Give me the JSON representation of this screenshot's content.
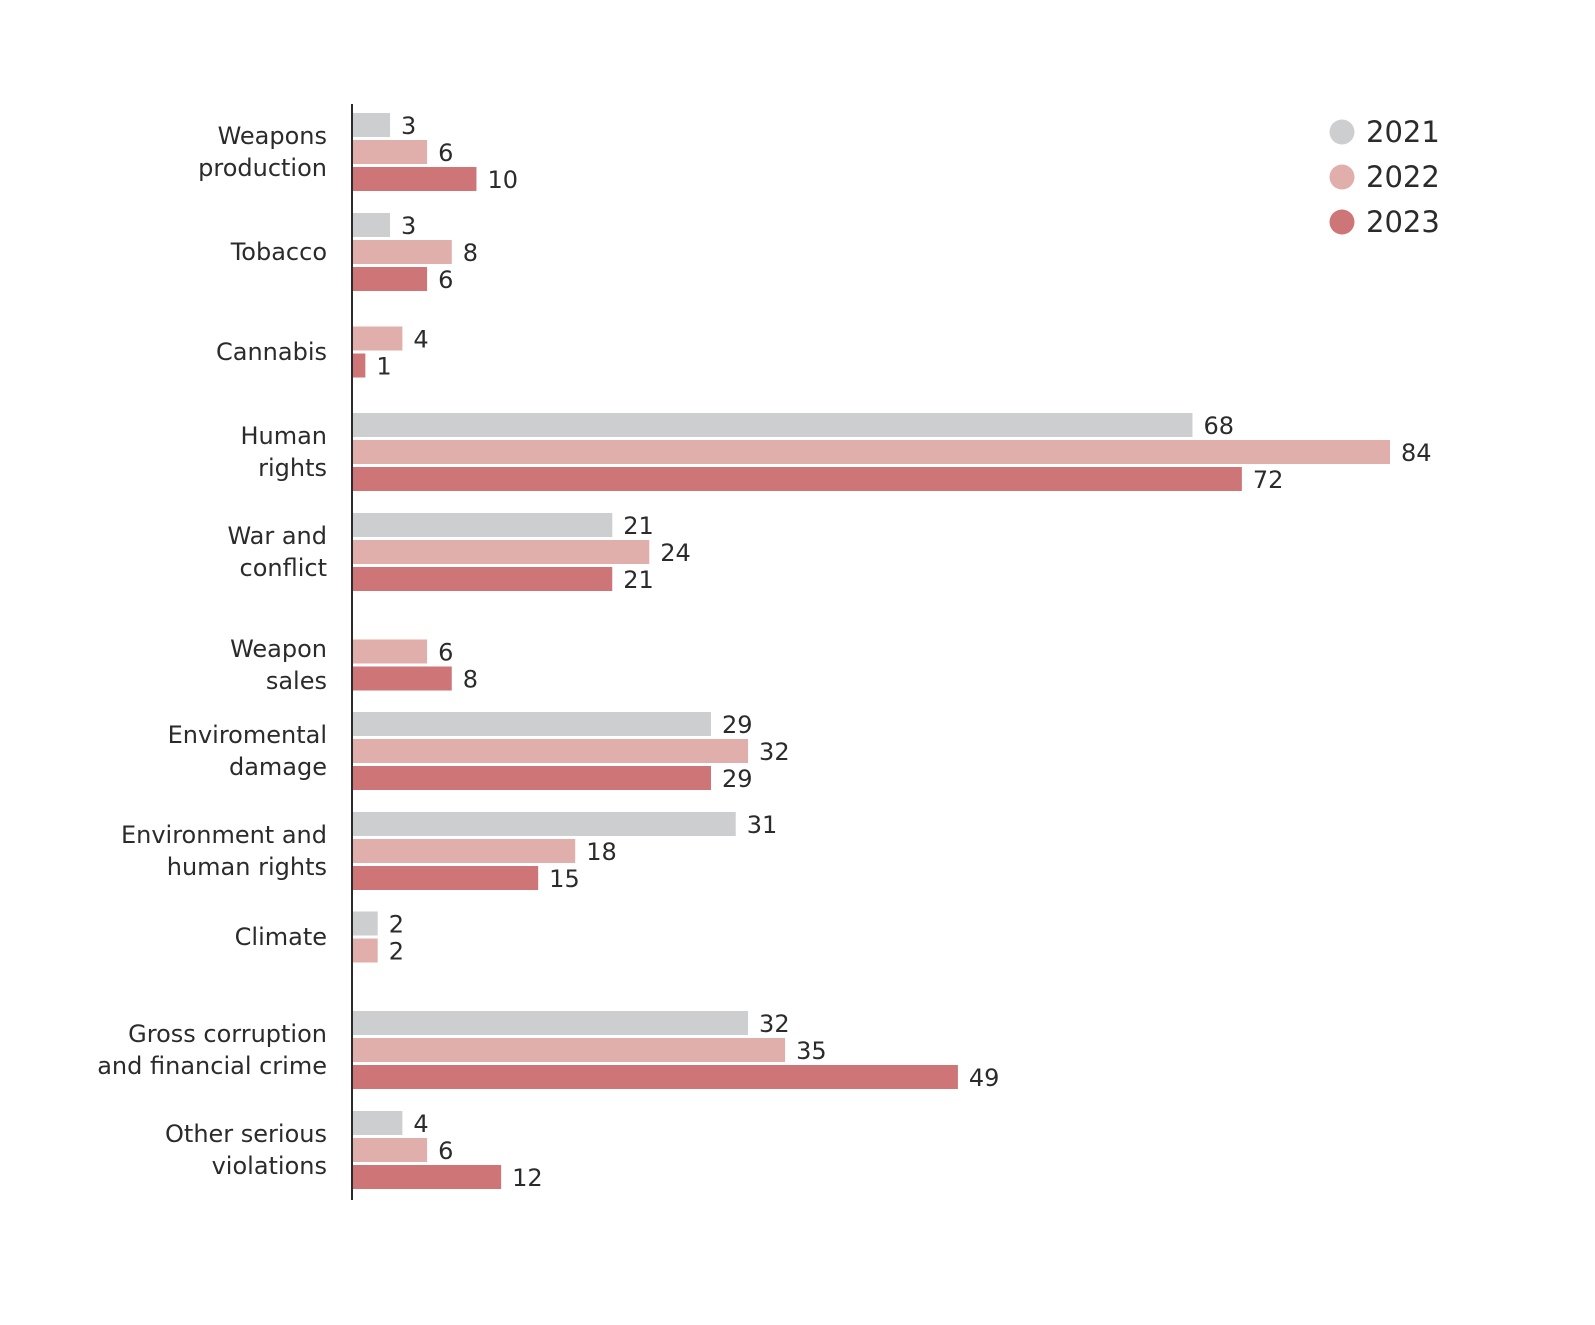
{
  "chart_data": {
    "type": "bar",
    "orientation": "horizontal",
    "title": "",
    "xlabel": "",
    "ylabel": "",
    "xlim": [
      0,
      84
    ],
    "grid": false,
    "legend_position": "top-right",
    "categories": [
      [
        "Weapons",
        "production"
      ],
      [
        "Tobacco"
      ],
      [
        "Cannabis"
      ],
      [
        "Human",
        "rights"
      ],
      [
        "War and",
        "conflict"
      ],
      [
        "Weapon",
        "sales"
      ],
      [
        "Enviromental",
        "damage"
      ],
      [
        "Environment and",
        "human rights"
      ],
      [
        "Climate"
      ],
      [
        "Gross corruption",
        "and financial crime"
      ],
      [
        "Other serious",
        "violations"
      ]
    ],
    "series": [
      {
        "name": "2021",
        "color": "#cdcecf",
        "values": [
          3,
          3,
          null,
          68,
          21,
          null,
          29,
          31,
          2,
          32,
          4
        ]
      },
      {
        "name": "2022",
        "color": "#e0aeab",
        "values": [
          6,
          8,
          4,
          84,
          24,
          6,
          32,
          18,
          2,
          35,
          6
        ]
      },
      {
        "name": "2023",
        "color": "#ce7577",
        "values": [
          10,
          6,
          1,
          72,
          21,
          8,
          29,
          15,
          null,
          49,
          12
        ]
      }
    ]
  }
}
